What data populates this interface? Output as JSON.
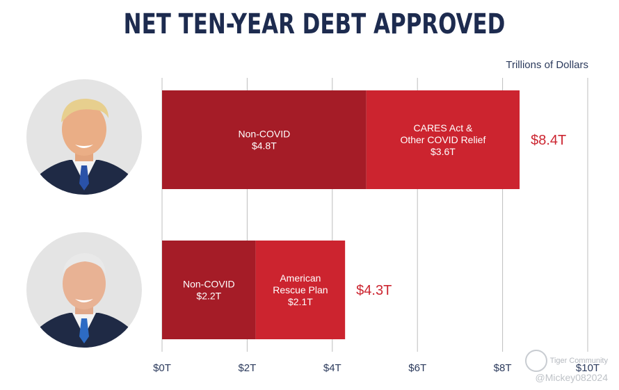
{
  "title": "NET TEN-YEAR DEBT APPROVED",
  "units_label": "Trillions of Dollars",
  "colors": {
    "title": "#1d2b4f",
    "segment_dark": "#a51c27",
    "segment_light": "#cc242f",
    "total_label": "#cc2530",
    "grid": "#bdbdbd",
    "tick_label": "#2b3a5c"
  },
  "chart_data": {
    "type": "bar",
    "orientation": "horizontal",
    "stacked": true,
    "xlim": [
      0,
      10
    ],
    "x_ticks": [
      0,
      2,
      4,
      6,
      8,
      10
    ],
    "x_tick_labels": [
      "$0T",
      "$2T",
      "$4T",
      "$6T",
      "$8T",
      "$10T"
    ],
    "grid": "vertical",
    "rows": [
      {
        "avatar": "trump-portrait",
        "segments": [
          {
            "label_lines": [
              "Non-COVID",
              "$4.8T"
            ],
            "value": 4.8,
            "shade": "dark"
          },
          {
            "label_lines": [
              "CARES Act &",
              "Other COVID Relief",
              "$3.6T"
            ],
            "value": 3.6,
            "shade": "light"
          }
        ],
        "total": 8.4,
        "total_label": "$8.4T"
      },
      {
        "avatar": "biden-portrait",
        "segments": [
          {
            "label_lines": [
              "Non-COVID",
              "$2.2T"
            ],
            "value": 2.2,
            "shade": "dark"
          },
          {
            "label_lines": [
              "American",
              "Rescue Plan",
              "$2.1T"
            ],
            "value": 2.1,
            "shade": "light"
          }
        ],
        "total": 4.3,
        "total_label": "$4.3T"
      }
    ]
  },
  "watermark": {
    "brand": "Tiger Community",
    "handle": "@Mickey082024"
  }
}
